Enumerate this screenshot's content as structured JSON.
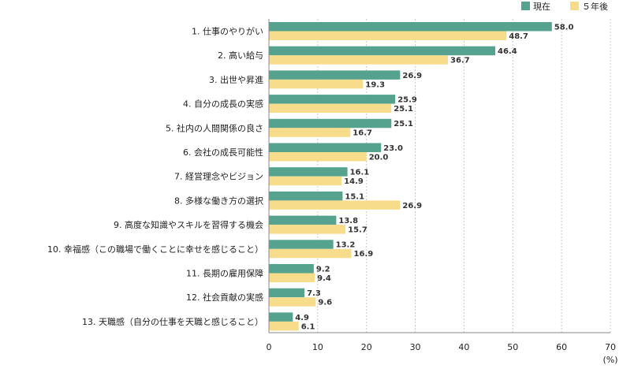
{
  "chart_data": {
    "type": "bar",
    "orientation": "horizontal",
    "categories": [
      "1. 仕事のやりがい",
      "2. 高い給与",
      "3. 出世や昇進",
      "4. 自分の成長の実感",
      "5. 社内の人間関係の良さ",
      "6. 会社の成長可能性",
      "7. 経営理念やビジョン",
      "8. 多様な働き方の選択",
      "9. 高度な知識やスキルを習得する機会",
      "10. 幸福感（この職場で働くことに幸せを感じること）",
      "11. 長期の雇用保障",
      "12. 社会貢献の実感",
      "13. 天職感（自分の仕事を天職と感じること）"
    ],
    "series": [
      {
        "name": "現在",
        "color": "#55a38f",
        "values": [
          58.0,
          46.4,
          26.9,
          25.9,
          25.1,
          23.0,
          16.1,
          15.1,
          13.8,
          13.2,
          9.2,
          7.3,
          4.9
        ],
        "labels": [
          "58.0",
          "46.4",
          "26.9",
          "25.9",
          "25.1",
          "23.0",
          "16.1",
          "15.1",
          "13.8",
          "13.2",
          "9.2",
          "7.3",
          "4.9"
        ]
      },
      {
        "name": "５年後",
        "color": "#f7dd8b",
        "values": [
          48.7,
          36.7,
          19.3,
          25.1,
          16.7,
          20.0,
          14.9,
          26.9,
          15.7,
          16.9,
          9.4,
          9.6,
          6.1
        ],
        "labels": [
          "48.7",
          "36.7",
          "19.3",
          "25.1",
          "16.7",
          "20.0",
          "14.9",
          "26.9",
          "15.7",
          "16.9",
          "9.4",
          "9.6",
          "6.1"
        ]
      }
    ],
    "xticks": [
      "0",
      "10",
      "20",
      "30",
      "40",
      "50",
      "60",
      "70"
    ],
    "xlim": [
      0,
      70
    ],
    "unit_label": "(%)",
    "grid": "vertical dashed",
    "legend_position": "top-right",
    "grid_color": "#c8c8c8",
    "axis_color": "#888888"
  }
}
